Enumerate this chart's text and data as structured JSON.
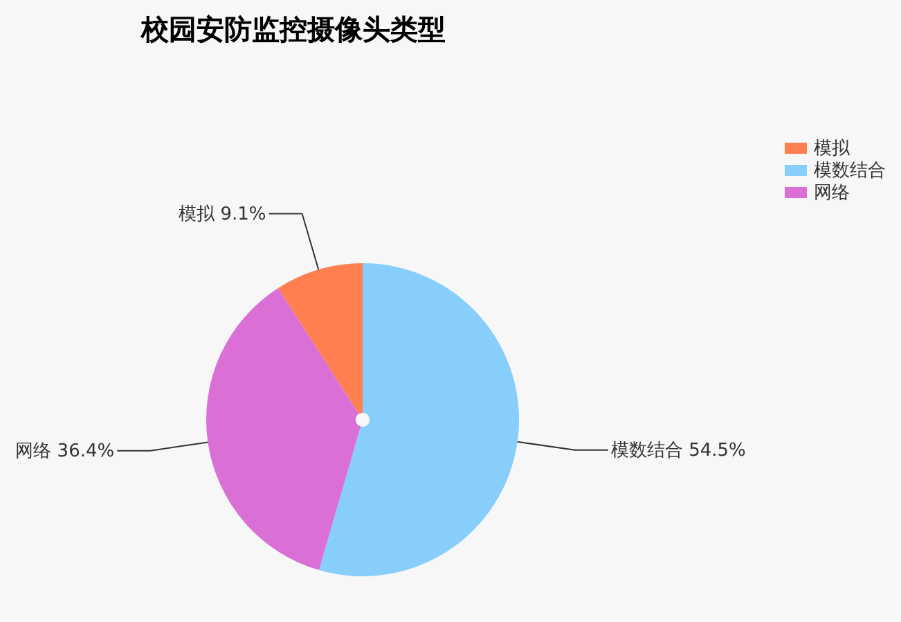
{
  "chart_data": {
    "type": "pie",
    "title": "校园安防监控摄像头类型",
    "categories": [
      "模拟",
      "模数结合",
      "网络"
    ],
    "values": [
      9.1,
      54.5,
      36.4
    ],
    "colors": [
      "#ff7f50",
      "#87cefa",
      "#da70d6"
    ],
    "value_labels": [
      "9.1%",
      "54.5%",
      "36.4%"
    ],
    "legend": "top right"
  }
}
